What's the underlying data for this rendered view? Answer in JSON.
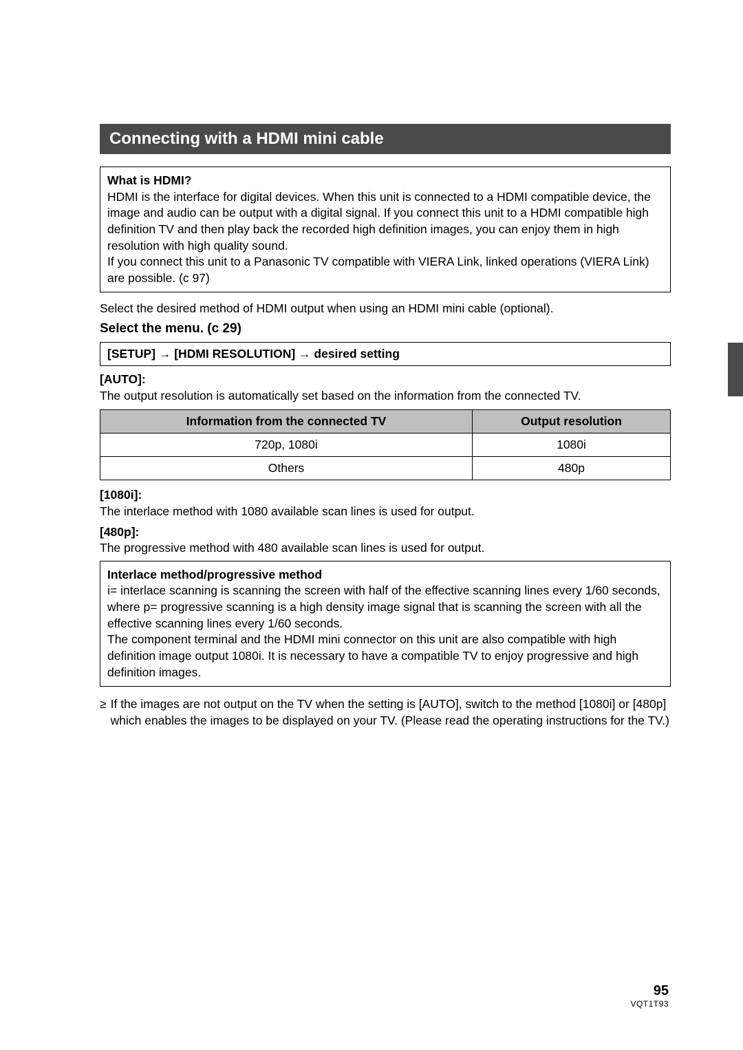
{
  "section_header": "Connecting with a HDMI mini cable",
  "hdmi_box": {
    "title": "What is HDMI?",
    "p1": "HDMI is the interface for digital devices. When this unit is connected to a HDMI compatible device, the image and audio can be output with a digital signal. If you connect this unit to a HDMI compatible high definition TV and then play back the recorded high definition images, you can enjoy them in high resolution with high quality sound.",
    "p2": "If you connect this unit to a Panasonic TV compatible with VIERA Link, linked operations (VIERA Link) are possible. (c  97)"
  },
  "intro_line": "Select the desired method of HDMI output when using an HDMI mini cable (optional).",
  "select_menu": "Select the menu. (c  29)",
  "menu_path": "[SETUP] → [HDMI RESOLUTION] → desired setting",
  "auto": {
    "label": "[AUTO]:",
    "desc": "The output resolution is automatically set based on the information from the connected TV."
  },
  "table": {
    "col1_header": "Information from the connected TV",
    "col2_header": "Output resolution",
    "rows": [
      {
        "c1": "720p, 1080i",
        "c2": "1080i"
      },
      {
        "c1": "Others",
        "c2": "480p"
      }
    ],
    "header_bg": "#bfbfbf",
    "border_color": "#000000",
    "font_size": 17.5
  },
  "r1080i": {
    "label": "[1080i]:",
    "desc": "The interlace method with 1080 available scan lines is used for output."
  },
  "r480p": {
    "label": "[480p]:",
    "desc": "The progressive method with 480 available scan lines is used for output."
  },
  "method_box": {
    "title": "Interlace method/progressive method",
    "p1": "i= interlace scanning is scanning the screen with half of the effective scanning lines every 1/60 seconds, where p= progressive scanning is a high density image signal that is scanning the screen with all the effective scanning lines every 1/60 seconds.",
    "p2": "The component terminal and the HDMI mini connector on this unit are also compatible with high definition image output 1080i. It is necessary to have a compatible TV to enjoy progressive and high definition images."
  },
  "note_bullet": "≥",
  "note_text": "If the images are not output on the TV when the setting is [AUTO], switch to the method [1080i] or [480p] which enables the images to be displayed on your TV. (Please read the operating instructions for the TV.)",
  "footer": {
    "page_number": "95",
    "doc_id": "VQT1T93"
  },
  "colors": {
    "section_header_bg": "#4a4a4a",
    "section_header_text": "#ffffff",
    "side_tab_bg": "#4a4a4a",
    "page_bg": "#ffffff",
    "text": "#000000"
  },
  "typography": {
    "body_fontsize": 17.5,
    "header_fontsize": 24,
    "subheading_fontsize": 19,
    "pagenum_fontsize": 20,
    "docid_fontsize": 12
  }
}
